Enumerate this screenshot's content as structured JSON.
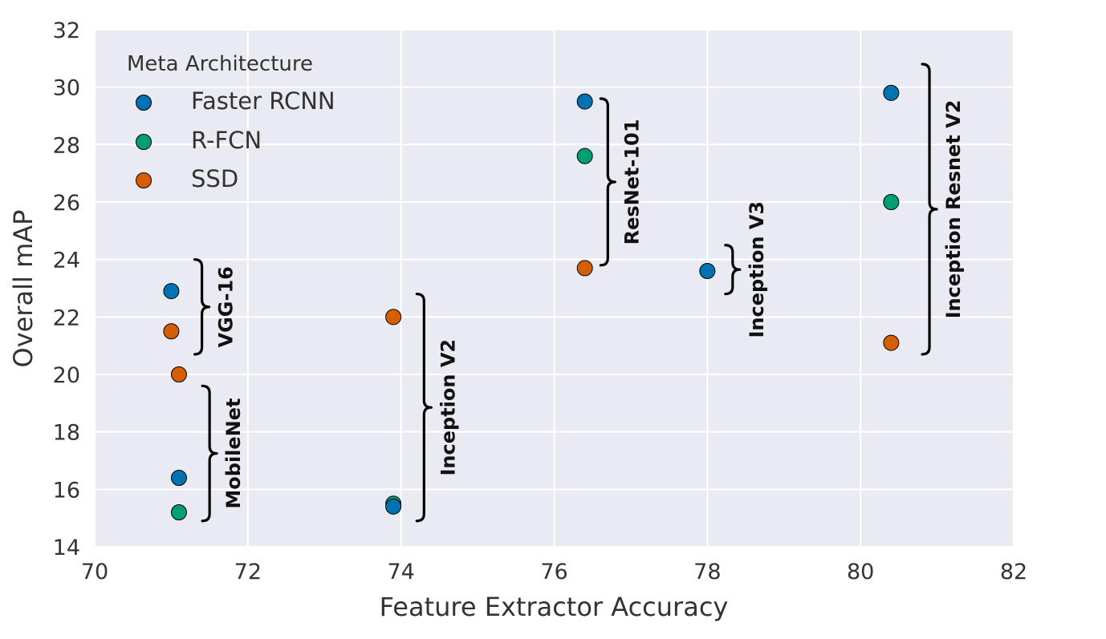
{
  "chart_data": {
    "type": "scatter",
    "title": "",
    "xlabel": "Feature Extractor Accuracy",
    "ylabel": "Overall mAP",
    "xlim": [
      70,
      82
    ],
    "ylim": [
      14,
      32
    ],
    "xticks": [
      70,
      72,
      74,
      76,
      78,
      80,
      82
    ],
    "yticks": [
      14,
      16,
      18,
      20,
      22,
      24,
      26,
      28,
      30,
      32
    ],
    "grid": true,
    "legend": {
      "title": "Meta Architecture",
      "location": "top-left"
    },
    "series": [
      {
        "name": "Faster RCNN",
        "color": "#0072B2",
        "points": [
          {
            "x": 71.0,
            "y": 22.9
          },
          {
            "x": 71.1,
            "y": 16.4
          },
          {
            "x": 73.9,
            "y": 15.4
          },
          {
            "x": 76.4,
            "y": 29.5
          },
          {
            "x": 78.0,
            "y": 23.6
          },
          {
            "x": 80.4,
            "y": 29.8
          }
        ]
      },
      {
        "name": "R-FCN",
        "color": "#009E73",
        "points": [
          {
            "x": 71.1,
            "y": 15.2
          },
          {
            "x": 73.9,
            "y": 15.5
          },
          {
            "x": 76.4,
            "y": 27.6
          },
          {
            "x": 80.4,
            "y": 26.0
          }
        ]
      },
      {
        "name": "SSD",
        "color": "#D55E00",
        "points": [
          {
            "x": 71.0,
            "y": 21.5
          },
          {
            "x": 71.1,
            "y": 20.0
          },
          {
            "x": 73.9,
            "y": 22.0
          },
          {
            "x": 76.4,
            "y": 23.7
          },
          {
            "x": 80.4,
            "y": 21.1
          }
        ]
      }
    ],
    "annotations": [
      {
        "label": "VGG-16",
        "x": 71.4,
        "y_low": 20.7,
        "y_high": 24.0
      },
      {
        "label": "MobileNet",
        "x": 71.5,
        "y_low": 14.9,
        "y_high": 19.6
      },
      {
        "label": "Inception V2",
        "x": 74.3,
        "y_low": 14.9,
        "y_high": 22.8
      },
      {
        "label": "ResNet-101",
        "x": 76.7,
        "y_low": 23.8,
        "y_high": 29.6
      },
      {
        "label": "Inception V3",
        "x": 78.33,
        "y_low": 22.8,
        "y_high": 24.5
      },
      {
        "label": "Inception Resnet V2",
        "x": 80.9,
        "y_low": 20.7,
        "y_high": 30.8
      }
    ]
  }
}
